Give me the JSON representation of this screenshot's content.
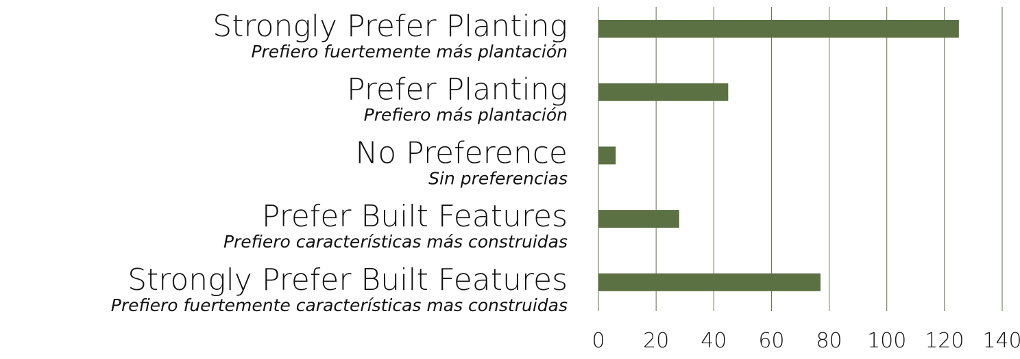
{
  "chart_data": {
    "type": "barh",
    "categories": [
      "Strongly Prefer Planting",
      "Prefer Planting",
      "No Preference",
      "Prefer Built Features",
      "Strongly Prefer Built Features"
    ],
    "category_translations": [
      "Prefiero fuertemente más plantación",
      "Prefiero más plantación",
      "Sin preferencias",
      "Prefiero características más construidas",
      "Prefiero fuertemente características mas construidas"
    ],
    "values": [
      125,
      45,
      6,
      28,
      77
    ],
    "color": "#5b7043",
    "xlim": [
      0,
      140
    ],
    "xticks": [
      0,
      20,
      40,
      60,
      80,
      100,
      120,
      140
    ],
    "grid": true
  }
}
